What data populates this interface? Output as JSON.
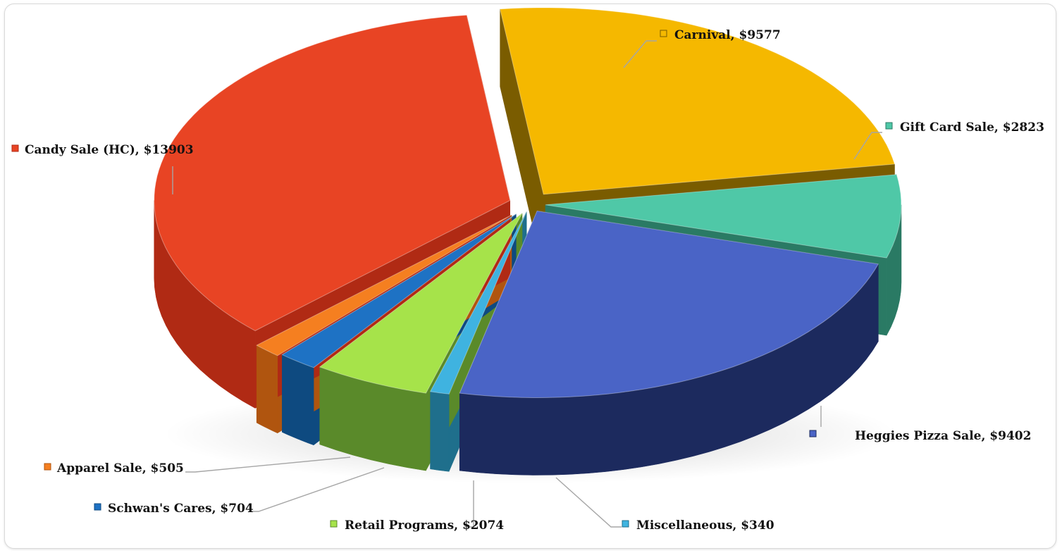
{
  "chart_data": {
    "type": "pie",
    "style": "3d-exploded",
    "title": "",
    "legend": "data-labels",
    "slices": [
      {
        "key": "carnival",
        "category": "Carnival",
        "value": 9577,
        "label": "Carnival, $9577",
        "color": "#f5b800",
        "side": "#7a5c00"
      },
      {
        "key": "giftcard",
        "category": "Gift Card Sale",
        "value": 2823,
        "label": "Gift Card Sale, $2823",
        "color": "#4fc8a7",
        "side": "#2a7a64"
      },
      {
        "key": "heggies",
        "category": "Heggies Pizza Sale",
        "value": 9402,
        "label": "Heggies Pizza Sale, $9402",
        "color": "#4a64c6",
        "side": "#1c2a5e"
      },
      {
        "key": "misc",
        "category": "Miscellaneous",
        "value": 340,
        "label": "Miscellaneous, $340",
        "color": "#3fb3e0",
        "side": "#1f6f8c"
      },
      {
        "key": "retail",
        "category": "Retail Programs",
        "value": 2074,
        "label": "Retail Programs, $2074",
        "color": "#a6e34a",
        "side": "#5a8a2a"
      },
      {
        "key": "schwans",
        "category": "Schwan's Cares",
        "value": 704,
        "label": "Schwan's Cares, $704",
        "color": "#1e72c4",
        "side": "#0e4a80"
      },
      {
        "key": "apparel",
        "category": "Apparel Sale",
        "value": 505,
        "label": "Apparel Sale, $505",
        "color": "#f57f20",
        "side": "#b0550f"
      },
      {
        "key": "candy",
        "category": "Candy Sale (HC)",
        "value": 13903,
        "label": "Candy Sale (HC), $13903",
        "color": "#e84424",
        "side": "#b02a14"
      }
    ]
  }
}
